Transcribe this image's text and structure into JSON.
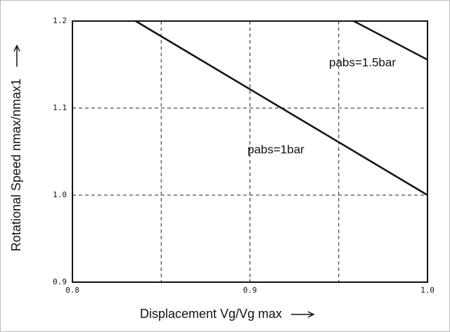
{
  "chart_data": {
    "type": "line",
    "xlabel": "Displacement Vg/Vg max",
    "ylabel": "Rotational Speed nmax/nmax1",
    "xlim": [
      0.8,
      1.0
    ],
    "ylim": [
      0.9,
      1.2
    ],
    "xticks": [
      0.8,
      0.9,
      {
        "value": 1.0,
        "label": "1.0"
      }
    ],
    "yticks": [
      0.9,
      {
        "value": 1.0,
        "label": "1.0"
      },
      1.1,
      1.2
    ],
    "xgrid": [
      0.85,
      0.9,
      0.95
    ],
    "ygrid": [
      1.0,
      1.1
    ],
    "grid": true,
    "series": [
      {
        "name": "pabs=1bar",
        "color": "#111111",
        "x": [
          0.8356,
          1.0
        ],
        "values": [
          1.2,
          1.0
        ]
      },
      {
        "name": "pabs=1.5bar",
        "color": "#111111",
        "x": [
          0.9584,
          1.0
        ],
        "values": [
          1.2,
          1.1556
        ]
      }
    ]
  }
}
